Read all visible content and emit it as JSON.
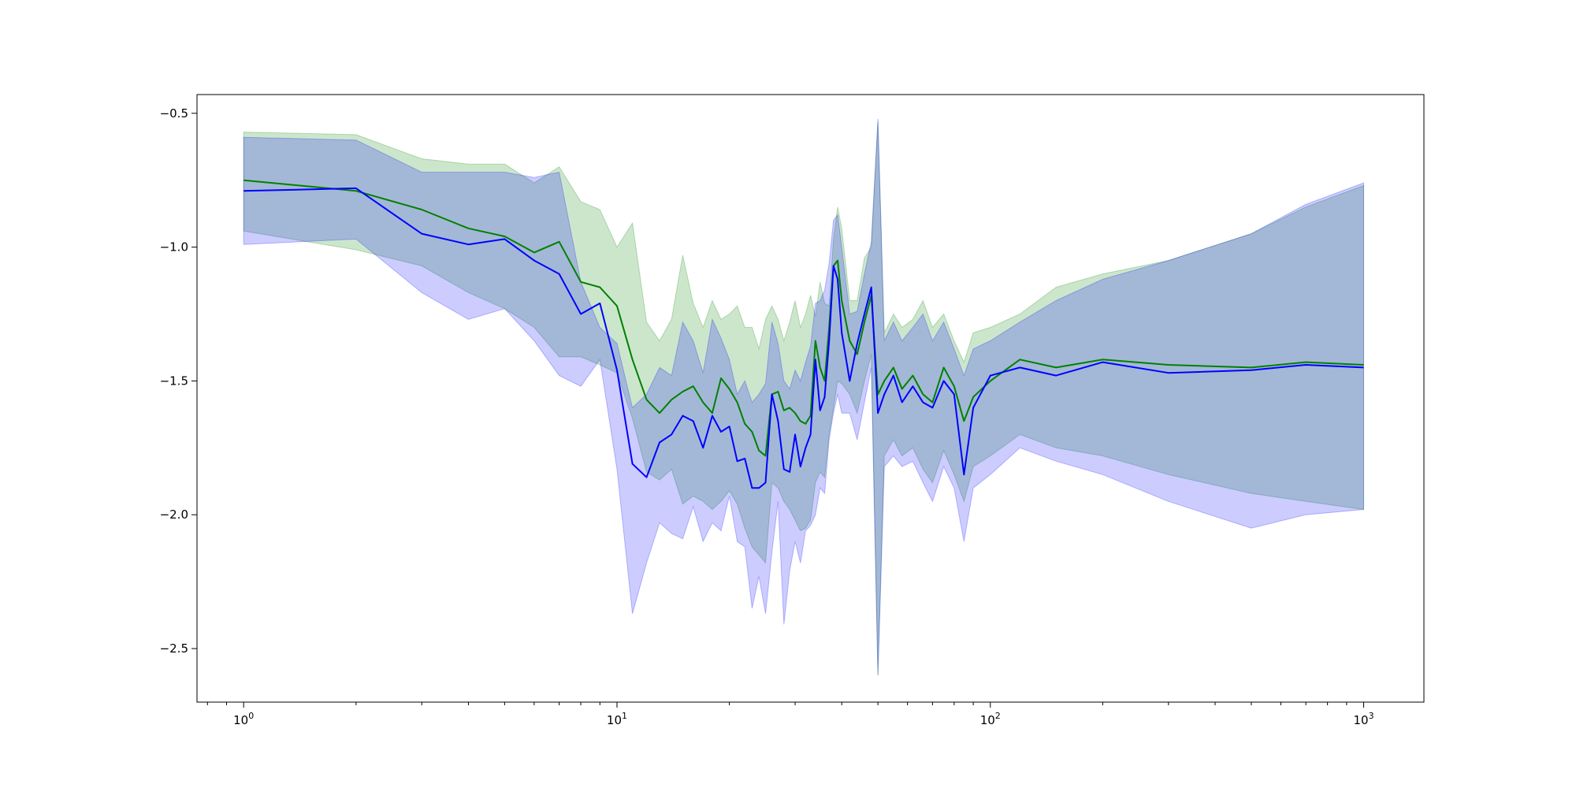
{
  "chart_data": {
    "type": "line",
    "title": "",
    "xlabel": "",
    "ylabel": "",
    "xscale": "log",
    "xlim": [
      0.75,
      1450
    ],
    "ylim": [
      -2.7,
      -0.43
    ],
    "grid": false,
    "legend": "none",
    "x_tick_labels": [
      {
        "base": "10",
        "exp": "0",
        "value": 1
      },
      {
        "base": "10",
        "exp": "1",
        "value": 10
      },
      {
        "base": "10",
        "exp": "2",
        "value": 100
      },
      {
        "base": "10",
        "exp": "3",
        "value": 1000
      }
    ],
    "y_tick_labels": [
      {
        "label": "−0.5",
        "value": -0.5
      },
      {
        "label": "−1.0",
        "value": -1.0
      },
      {
        "label": "−1.5",
        "value": -1.5
      },
      {
        "label": "−2.0",
        "value": -2.0
      },
      {
        "label": "−2.5",
        "value": -2.5
      }
    ],
    "series": [
      {
        "color": "#008000",
        "band_color": "#008000",
        "band_opacity": 0.2,
        "x": [
          1,
          2,
          3,
          4,
          5,
          6,
          7,
          8,
          9,
          10,
          11,
          12,
          13,
          14,
          15,
          16,
          17,
          18,
          19,
          20,
          21,
          22,
          23,
          24,
          25,
          26,
          27,
          28,
          29,
          30,
          31,
          32,
          33,
          34,
          35,
          36,
          37,
          38,
          39,
          40,
          42,
          44,
          46,
          48,
          50,
          52,
          55,
          58,
          62,
          66,
          70,
          75,
          80,
          85,
          90,
          100,
          120,
          150,
          200,
          300,
          500,
          700,
          1000
        ],
        "mean": [
          -0.75,
          -0.79,
          -0.86,
          -0.93,
          -0.96,
          -1.02,
          -0.98,
          -1.13,
          -1.15,
          -1.22,
          -1.42,
          -1.57,
          -1.62,
          -1.57,
          -1.54,
          -1.52,
          -1.58,
          -1.62,
          -1.49,
          -1.53,
          -1.58,
          -1.66,
          -1.69,
          -1.76,
          -1.78,
          -1.55,
          -1.54,
          -1.61,
          -1.6,
          -1.62,
          -1.65,
          -1.66,
          -1.63,
          -1.35,
          -1.45,
          -1.5,
          -1.3,
          -1.07,
          -1.05,
          -1.2,
          -1.35,
          -1.4,
          -1.28,
          -1.18,
          -1.55,
          -1.5,
          -1.45,
          -1.53,
          -1.48,
          -1.55,
          -1.58,
          -1.45,
          -1.52,
          -1.65,
          -1.56,
          -1.5,
          -1.42,
          -1.45,
          -1.42,
          -1.44,
          -1.45,
          -1.43,
          -1.44
        ],
        "upper": [
          -0.57,
          -0.58,
          -0.67,
          -0.69,
          -0.69,
          -0.76,
          -0.7,
          -0.83,
          -0.86,
          -1.0,
          -0.91,
          -1.28,
          -1.35,
          -1.27,
          -1.03,
          -1.21,
          -1.3,
          -1.2,
          -1.27,
          -1.25,
          -1.22,
          -1.3,
          -1.3,
          -1.38,
          -1.27,
          -1.22,
          -1.27,
          -1.35,
          -1.28,
          -1.2,
          -1.3,
          -1.25,
          -1.18,
          -1.26,
          -1.13,
          -1.21,
          -1.22,
          -0.97,
          -0.85,
          -0.93,
          -1.2,
          -1.2,
          -1.04,
          -1.0,
          -0.53,
          -1.32,
          -1.25,
          -1.3,
          -1.27,
          -1.2,
          -1.3,
          -1.25,
          -1.35,
          -1.43,
          -1.32,
          -1.3,
          -1.25,
          -1.15,
          -1.1,
          -1.05,
          -0.95,
          -0.85,
          -0.77
        ],
        "lower": [
          -0.94,
          -1.01,
          -1.07,
          -1.17,
          -1.23,
          -1.3,
          -1.41,
          -1.41,
          -1.44,
          -1.47,
          -1.64,
          -1.84,
          -1.87,
          -1.83,
          -1.96,
          -1.93,
          -1.95,
          -1.98,
          -1.95,
          -1.91,
          -1.96,
          -2.05,
          -2.12,
          -2.15,
          -2.18,
          -1.88,
          -1.9,
          -1.95,
          -1.98,
          -2.02,
          -2.06,
          -2.05,
          -2.02,
          -1.88,
          -1.84,
          -1.86,
          -1.7,
          -1.6,
          -1.5,
          -1.51,
          -1.55,
          -1.62,
          -1.5,
          -1.4,
          -2.6,
          -1.78,
          -1.72,
          -1.78,
          -1.75,
          -1.83,
          -1.88,
          -1.76,
          -1.85,
          -1.95,
          -1.82,
          -1.78,
          -1.7,
          -1.75,
          -1.78,
          -1.85,
          -1.92,
          -1.95,
          -1.98
        ]
      },
      {
        "color": "#0000ff",
        "band_color": "#0000ff",
        "band_opacity": 0.2,
        "x": [
          1,
          2,
          3,
          4,
          5,
          6,
          7,
          8,
          9,
          10,
          11,
          12,
          13,
          14,
          15,
          16,
          17,
          18,
          19,
          20,
          21,
          22,
          23,
          24,
          25,
          26,
          27,
          28,
          29,
          30,
          31,
          32,
          33,
          34,
          35,
          36,
          37,
          38,
          39,
          40,
          42,
          44,
          46,
          48,
          50,
          52,
          55,
          58,
          62,
          66,
          70,
          75,
          80,
          85,
          90,
          100,
          120,
          150,
          200,
          300,
          500,
          700,
          1000
        ],
        "mean": [
          -0.79,
          -0.78,
          -0.95,
          -0.99,
          -0.97,
          -1.05,
          -1.1,
          -1.25,
          -1.21,
          -1.46,
          -1.81,
          -1.86,
          -1.73,
          -1.7,
          -1.63,
          -1.65,
          -1.75,
          -1.63,
          -1.69,
          -1.67,
          -1.8,
          -1.79,
          -1.9,
          -1.9,
          -1.88,
          -1.55,
          -1.65,
          -1.83,
          -1.84,
          -1.7,
          -1.82,
          -1.75,
          -1.7,
          -1.42,
          -1.61,
          -1.56,
          -1.35,
          -1.07,
          -1.12,
          -1.32,
          -1.5,
          -1.36,
          -1.25,
          -1.15,
          -1.62,
          -1.55,
          -1.48,
          -1.58,
          -1.52,
          -1.58,
          -1.6,
          -1.5,
          -1.55,
          -1.85,
          -1.6,
          -1.48,
          -1.45,
          -1.48,
          -1.43,
          -1.47,
          -1.46,
          -1.44,
          -1.45
        ],
        "upper": [
          -0.59,
          -0.6,
          -0.72,
          -0.72,
          -0.72,
          -0.74,
          -0.72,
          -1.13,
          -1.3,
          -1.36,
          -1.6,
          -1.55,
          -1.45,
          -1.48,
          -1.28,
          -1.35,
          -1.47,
          -1.27,
          -1.34,
          -1.42,
          -1.55,
          -1.5,
          -1.58,
          -1.55,
          -1.51,
          -1.28,
          -1.36,
          -1.5,
          -1.53,
          -1.46,
          -1.5,
          -1.43,
          -1.37,
          -1.21,
          -1.2,
          -1.16,
          -1.06,
          -0.9,
          -0.88,
          -1.0,
          -1.25,
          -1.24,
          -1.1,
          -0.98,
          -0.52,
          -1.35,
          -1.28,
          -1.35,
          -1.3,
          -1.25,
          -1.35,
          -1.28,
          -1.38,
          -1.48,
          -1.38,
          -1.35,
          -1.28,
          -1.2,
          -1.12,
          -1.05,
          -0.95,
          -0.84,
          -0.76
        ],
        "lower": [
          -0.99,
          -0.97,
          -1.17,
          -1.27,
          -1.23,
          -1.35,
          -1.48,
          -1.52,
          -1.42,
          -1.83,
          -2.37,
          -2.18,
          -2.03,
          -2.07,
          -2.09,
          -1.97,
          -2.1,
          -2.03,
          -2.06,
          -1.93,
          -2.1,
          -2.12,
          -2.35,
          -2.23,
          -2.37,
          -2.14,
          -1.95,
          -2.41,
          -2.21,
          -2.1,
          -2.18,
          -2.06,
          -2.04,
          -2.0,
          -1.9,
          -1.92,
          -1.72,
          -1.62,
          -1.55,
          -1.62,
          -1.62,
          -1.72,
          -1.58,
          -1.45,
          -2.6,
          -1.82,
          -1.78,
          -1.82,
          -1.8,
          -1.88,
          -1.95,
          -1.82,
          -1.9,
          -2.1,
          -1.9,
          -1.85,
          -1.75,
          -1.8,
          -1.85,
          -1.95,
          -2.05,
          -2.0,
          -1.98
        ]
      }
    ],
    "x_minor_ticks": [
      0.8,
      0.9,
      2,
      3,
      4,
      5,
      6,
      7,
      8,
      9,
      20,
      30,
      40,
      50,
      60,
      70,
      80,
      90,
      200,
      300,
      400,
      500,
      600,
      700,
      800,
      900
    ]
  }
}
